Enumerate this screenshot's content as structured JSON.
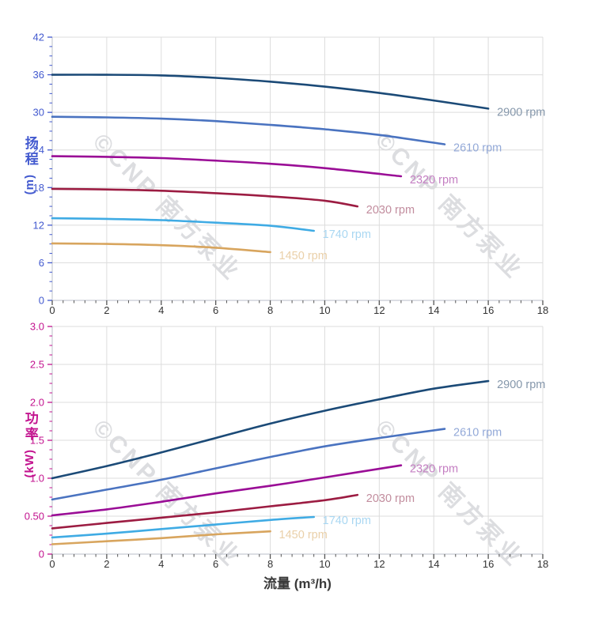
{
  "figure": {
    "background": "#ffffff",
    "xlabel": "流量 (m³/h)",
    "watermark_text": "©CNP 南方泵业"
  },
  "chart_data": [
    {
      "type": "line",
      "title": "",
      "ylabel": "扬程",
      "ylabel_unit": "(m)",
      "xlabel": "流量 (m³/h)",
      "xlim": [
        0,
        18
      ],
      "ylim": [
        0,
        42
      ],
      "grid": true,
      "legend_position": "labels-at-curve-ends",
      "x_major_step": 2,
      "x_minor_step": 0.4,
      "y_minor_step": 1.5,
      "x_tick_values": [
        0,
        2,
        4,
        6,
        8,
        10,
        12,
        14,
        16,
        18
      ],
      "x_tick_labels": [
        "0",
        "2",
        "4",
        "6",
        "8",
        "10",
        "12",
        "14",
        "16",
        "18"
      ],
      "y_tick_values": [
        0,
        6,
        12,
        18,
        24,
        30,
        36,
        42
      ],
      "y_tick_labels": [
        "0",
        "6",
        "12",
        "18",
        "24",
        "30",
        "36",
        "42"
      ],
      "axis_color": "#4259cf",
      "series": [
        {
          "name": "2900 rpm",
          "color": "#1b4a77",
          "label_color": "#8597ab",
          "points": [
            [
              0,
              36.0
            ],
            [
              2,
              36.0
            ],
            [
              4,
              35.9
            ],
            [
              6,
              35.5
            ],
            [
              8,
              34.9
            ],
            [
              10,
              34.1
            ],
            [
              12,
              33.1
            ],
            [
              14,
              31.9
            ],
            [
              16,
              30.6
            ]
          ]
        },
        {
          "name": "2610 rpm",
          "color": "#4a73c0",
          "label_color": "#93a9d8",
          "points": [
            [
              0,
              29.3
            ],
            [
              2,
              29.2
            ],
            [
              4,
              29.0
            ],
            [
              6,
              28.6
            ],
            [
              8,
              28.0
            ],
            [
              10,
              27.3
            ],
            [
              12,
              26.4
            ],
            [
              14.4,
              24.9
            ]
          ]
        },
        {
          "name": "2320 rpm",
          "color": "#9a0d96",
          "label_color": "#c47ec2",
          "points": [
            [
              0,
              23.0
            ],
            [
              2,
              22.9
            ],
            [
              4,
              22.7
            ],
            [
              6,
              22.3
            ],
            [
              8,
              21.8
            ],
            [
              10,
              21.1
            ],
            [
              12.8,
              19.8
            ]
          ]
        },
        {
          "name": "2030 rpm",
          "color": "#9c1c42",
          "label_color": "#c28d9e",
          "points": [
            [
              0,
              17.8
            ],
            [
              2,
              17.7
            ],
            [
              4,
              17.5
            ],
            [
              6,
              17.1
            ],
            [
              8,
              16.6
            ],
            [
              10,
              15.9
            ],
            [
              11.2,
              15.0
            ]
          ]
        },
        {
          "name": "1740 rpm",
          "color": "#3fabe4",
          "label_color": "#a9d7f2",
          "points": [
            [
              0,
              13.1
            ],
            [
              2,
              13.0
            ],
            [
              4,
              12.8
            ],
            [
              6,
              12.4
            ],
            [
              8,
              11.9
            ],
            [
              9.6,
              11.1
            ]
          ]
        },
        {
          "name": "1450 rpm",
          "color": "#d8a55e",
          "label_color": "#ead0a9",
          "points": [
            [
              0,
              9.1
            ],
            [
              2,
              9.0
            ],
            [
              4,
              8.8
            ],
            [
              6,
              8.4
            ],
            [
              8,
              7.7
            ]
          ]
        }
      ]
    },
    {
      "type": "line",
      "title": "",
      "ylabel": "功率",
      "ylabel_unit": "(kW)",
      "xlabel": "流量 (m³/h)",
      "xlim": [
        0,
        18
      ],
      "ylim": [
        0,
        3.0
      ],
      "grid": true,
      "legend_position": "labels-at-curve-ends",
      "x_major_step": 2,
      "x_minor_step": 0.4,
      "y_minor_step": 0.125,
      "x_tick_values": [
        0,
        2,
        4,
        6,
        8,
        10,
        12,
        14,
        16,
        18
      ],
      "x_tick_labels": [
        "0",
        "2",
        "4",
        "6",
        "8",
        "10",
        "12",
        "14",
        "16",
        "18"
      ],
      "y_tick_values": [
        0,
        0.5,
        1.0,
        1.5,
        2.0,
        2.5,
        3.0
      ],
      "y_tick_labels": [
        "0",
        "0.50",
        "1.0",
        "1.5",
        "2.0",
        "2.5",
        "3.0"
      ],
      "axis_color": "#c3138f",
      "series": [
        {
          "name": "2900 rpm",
          "color": "#1b4a77",
          "label_color": "#8597ab",
          "points": [
            [
              0,
              1.0
            ],
            [
              2,
              1.16
            ],
            [
              4,
              1.34
            ],
            [
              6,
              1.53
            ],
            [
              8,
              1.72
            ],
            [
              10,
              1.89
            ],
            [
              12,
              2.04
            ],
            [
              14,
              2.18
            ],
            [
              16,
              2.28
            ]
          ]
        },
        {
          "name": "2610 rpm",
          "color": "#4a73c0",
          "label_color": "#93a9d8",
          "points": [
            [
              0,
              0.72
            ],
            [
              2,
              0.85
            ],
            [
              4,
              0.98
            ],
            [
              6,
              1.13
            ],
            [
              8,
              1.28
            ],
            [
              10,
              1.42
            ],
            [
              12,
              1.53
            ],
            [
              14.4,
              1.65
            ]
          ]
        },
        {
          "name": "2320 rpm",
          "color": "#9a0d96",
          "label_color": "#c47ec2",
          "points": [
            [
              0,
              0.51
            ],
            [
              2,
              0.59
            ],
            [
              4,
              0.69
            ],
            [
              6,
              0.8
            ],
            [
              8,
              0.9
            ],
            [
              10,
              1.01
            ],
            [
              12.8,
              1.17
            ]
          ]
        },
        {
          "name": "2030 rpm",
          "color": "#9c1c42",
          "label_color": "#c28d9e",
          "points": [
            [
              0,
              0.34
            ],
            [
              2,
              0.41
            ],
            [
              4,
              0.48
            ],
            [
              6,
              0.55
            ],
            [
              8,
              0.63
            ],
            [
              10,
              0.71
            ],
            [
              11.2,
              0.78
            ]
          ]
        },
        {
          "name": "1740 rpm",
          "color": "#3fabe4",
          "label_color": "#a9d7f2",
          "points": [
            [
              0,
              0.22
            ],
            [
              2,
              0.27
            ],
            [
              4,
              0.33
            ],
            [
              6,
              0.39
            ],
            [
              8,
              0.45
            ],
            [
              9.6,
              0.49
            ]
          ]
        },
        {
          "name": "1450 rpm",
          "color": "#d8a55e",
          "label_color": "#ead0a9",
          "points": [
            [
              0,
              0.13
            ],
            [
              2,
              0.17
            ],
            [
              4,
              0.21
            ],
            [
              6,
              0.26
            ],
            [
              8,
              0.3
            ]
          ]
        }
      ]
    }
  ]
}
